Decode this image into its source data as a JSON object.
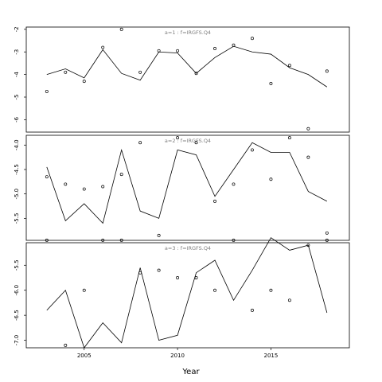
{
  "chart_data": {
    "type": "line",
    "xlabel": "Year",
    "x_ticks": [
      2005,
      2010,
      2015
    ],
    "xlim": [
      2001.9,
      2019.2
    ],
    "series_names": [
      "line",
      "points"
    ],
    "panels": [
      {
        "label": "a=1  :  f=IRGFS.Q4",
        "ylim": [
          -6.55,
          -1.9
        ],
        "y_ticks": [
          -2,
          -3,
          -4,
          -5,
          -6
        ],
        "y_tick_labels": [
          "-2",
          "-3",
          "-4",
          "-5",
          "-6"
        ],
        "line": {
          "x": [
            2003,
            2004,
            2005,
            2006,
            2007,
            2008,
            2009,
            2010,
            2011,
            2012,
            2013,
            2014,
            2015,
            2016,
            2017,
            2018
          ],
          "y": [
            -4.0,
            -3.75,
            -4.15,
            -2.9,
            -3.95,
            -4.25,
            -3.0,
            -3.05,
            -3.95,
            -3.25,
            -2.75,
            -3.0,
            -3.1,
            -3.7,
            -4.0,
            -4.55
          ]
        },
        "points": {
          "x": [
            2003,
            2004,
            2005,
            2006,
            2007,
            2008,
            2009,
            2010,
            2011,
            2012,
            2013,
            2014,
            2015,
            2016,
            2017,
            2018
          ],
          "y": [
            -4.75,
            -3.9,
            -4.3,
            -2.8,
            -2.0,
            -3.9,
            -2.95,
            -2.95,
            -3.95,
            -2.85,
            -2.7,
            -2.4,
            -4.4,
            -3.6,
            -6.4,
            -3.85
          ]
        }
      },
      {
        "label": "a=2  :  f=IRGFS.Q4",
        "ylim": [
          -5.95,
          -3.8
        ],
        "y_ticks": [
          -4.0,
          -4.5,
          -5.0,
          -5.5
        ],
        "y_tick_labels": [
          "-4.0",
          "-4.5",
          "-5.0",
          "-5.5"
        ],
        "line": {
          "x": [
            2003,
            2004,
            2005,
            2006,
            2007,
            2008,
            2009,
            2010,
            2011,
            2012,
            2013,
            2014,
            2015,
            2016,
            2017,
            2018
          ],
          "y": [
            -4.45,
            -5.55,
            -5.2,
            -5.6,
            -4.1,
            -5.35,
            -5.5,
            -4.1,
            -4.2,
            -5.05,
            -4.5,
            -3.95,
            -4.15,
            -4.15,
            -4.95,
            -5.15
          ]
        },
        "points": {
          "x": [
            2003,
            2004,
            2005,
            2006,
            2007,
            2008,
            2009,
            2010,
            2011,
            2012,
            2013,
            2014,
            2015,
            2016,
            2017,
            2018
          ],
          "y": [
            -4.65,
            -4.8,
            -4.9,
            -4.85,
            -4.6,
            -3.95,
            -5.85,
            -3.85,
            -3.95,
            -5.15,
            -4.8,
            -4.1,
            -4.7,
            -3.85,
            -4.25,
            -5.8
          ]
        }
      },
      {
        "label": "a=3  :  f=IRGFS.Q4",
        "ylim": [
          -7.15,
          -5.05
        ],
        "y_ticks": [
          -5.5,
          -6.0,
          -6.5,
          -7.0
        ],
        "y_tick_labels": [
          "-5.5",
          "-6.0",
          "-6.5",
          "-7.0"
        ],
        "line": {
          "x": [
            2003,
            2004,
            2005,
            2006,
            2007,
            2008,
            2009,
            2010,
            2011,
            2012,
            2013,
            2014,
            2015,
            2016,
            2017,
            2018
          ],
          "y": [
            -6.4,
            -6.0,
            -7.15,
            -6.65,
            -7.05,
            -5.55,
            -7.0,
            -6.9,
            -5.65,
            -5.4,
            -6.2,
            -5.6,
            -4.95,
            -5.2,
            -5.1,
            -6.45
          ]
        },
        "points": {
          "x": [
            2003,
            2004,
            2005,
            2006,
            2007,
            2008,
            2009,
            2010,
            2011,
            2012,
            2013,
            2014,
            2015,
            2016,
            2017,
            2018
          ],
          "y": [
            -5.0,
            -7.1,
            -6.0,
            -5.0,
            -5.0,
            -5.65,
            -5.6,
            -5.75,
            -5.75,
            -6.0,
            -5.0,
            -6.4,
            -6.0,
            -6.2,
            -5.1,
            -5.0
          ]
        }
      }
    ]
  }
}
